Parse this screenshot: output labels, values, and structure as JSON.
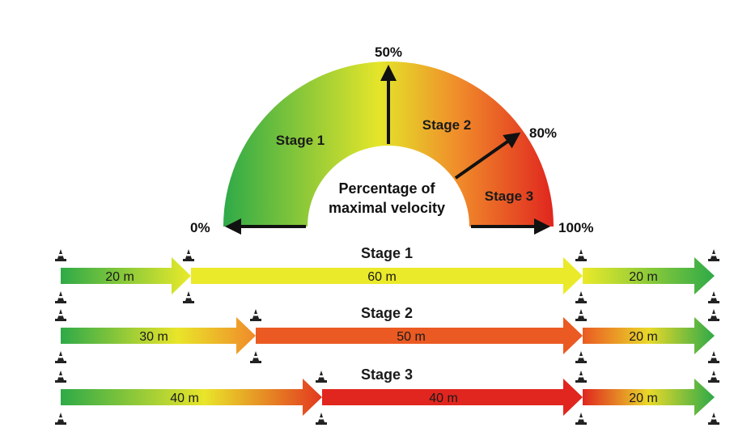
{
  "gauge": {
    "center_text_line1": "Percentage of",
    "center_text_line2": "maximal velocity",
    "tick_0": "0%",
    "tick_50": "50%",
    "tick_80": "80%",
    "tick_100": "100%",
    "sector_1_label": "Stage 1",
    "sector_2_label": "Stage 2",
    "sector_3_label": "Stage 3",
    "sector_1_range": [
      0,
      50
    ],
    "sector_2_range": [
      50,
      80
    ],
    "sector_3_range": [
      80,
      100
    ],
    "colors": {
      "green": "#2eaa48",
      "yellow": "#e9e52a",
      "orange": "#f0892a",
      "red": "#e0261f"
    }
  },
  "stages": [
    {
      "title": "Stage 1",
      "segments": [
        {
          "label": "20 m",
          "meters": 20,
          "fill": "green-to-yellow"
        },
        {
          "label": "60 m",
          "meters": 60,
          "fill": "yellow"
        },
        {
          "label": "20 m",
          "meters": 20,
          "fill": "yellow-to-green"
        }
      ]
    },
    {
      "title": "Stage 2",
      "segments": [
        {
          "label": "30 m",
          "meters": 30,
          "fill": "green-to-orange"
        },
        {
          "label": "50 m",
          "meters": 50,
          "fill": "orange"
        },
        {
          "label": "20 m",
          "meters": 20,
          "fill": "orange-to-green"
        }
      ]
    },
    {
      "title": "Stage 3",
      "segments": [
        {
          "label": "40 m",
          "meters": 40,
          "fill": "green-to-red"
        },
        {
          "label": "40 m",
          "meters": 40,
          "fill": "red"
        },
        {
          "label": "20 m",
          "meters": 20,
          "fill": "red-to-green"
        }
      ]
    }
  ]
}
